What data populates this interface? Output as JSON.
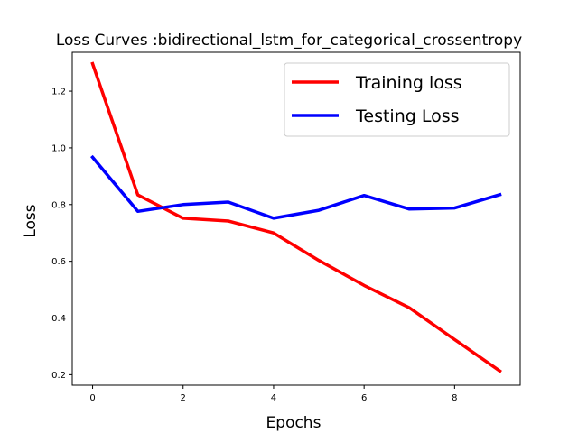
{
  "chart_data": {
    "type": "line",
    "title": "Loss Curves :bidirectional_lstm_for_categorical_crossentropy",
    "xlabel": "Epochs",
    "ylabel": "Loss",
    "x": [
      0,
      1,
      2,
      3,
      4,
      5,
      6,
      7,
      8,
      9
    ],
    "xlim": [
      -0.45,
      9.45
    ],
    "ylim": [
      0.163,
      1.337
    ],
    "xticks": [
      0,
      2,
      4,
      6,
      8
    ],
    "yticks": [
      0.2,
      0.4,
      0.6,
      0.8,
      1.0,
      1.2
    ],
    "xtick_labels": [
      "0",
      "2",
      "4",
      "6",
      "8"
    ],
    "ytick_labels": [
      "0.2",
      "0.4",
      "0.6",
      "0.8",
      "1.0",
      "1.2"
    ],
    "grid": false,
    "legend_position": "top-right",
    "series": [
      {
        "name": "Training loss",
        "color": "#ff0000",
        "values": [
          1.297,
          0.834,
          0.752,
          0.742,
          0.7,
          0.603,
          0.515,
          0.436,
          0.324,
          0.213
        ]
      },
      {
        "name": "Testing Loss",
        "color": "#0000ff",
        "values": [
          0.967,
          0.776,
          0.8,
          0.809,
          0.752,
          0.78,
          0.832,
          0.784,
          0.788,
          0.835
        ]
      }
    ]
  }
}
